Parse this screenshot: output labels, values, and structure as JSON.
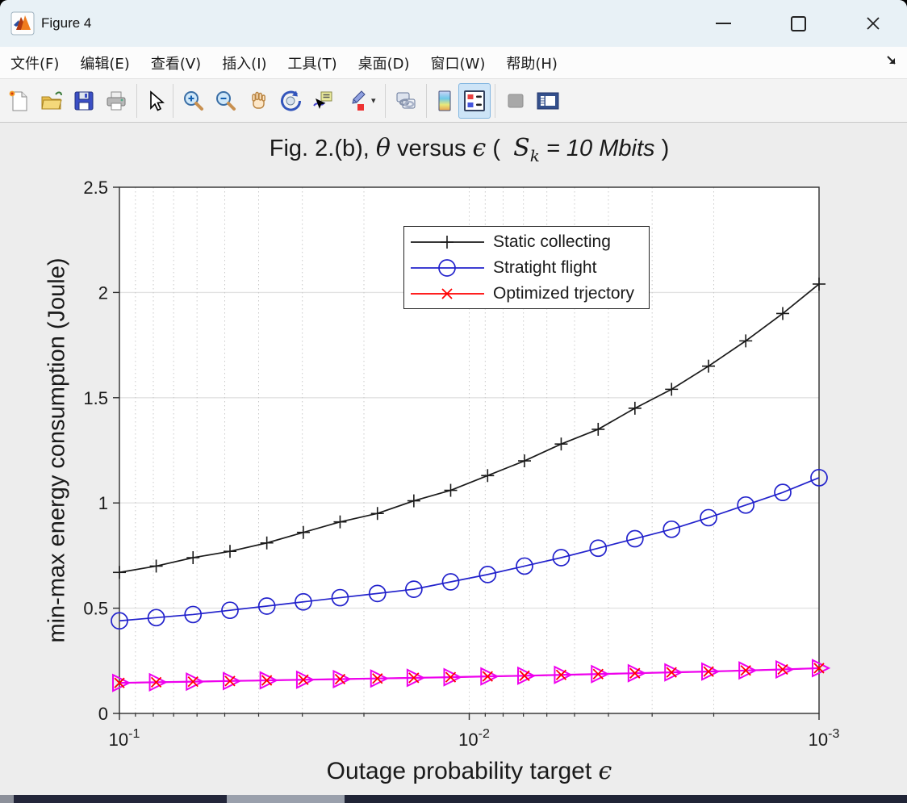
{
  "window": {
    "title": "Figure 4"
  },
  "menu": {
    "items": [
      "文件(F)",
      "编辑(E)",
      "查看(V)",
      "插入(I)",
      "工具(T)",
      "桌面(D)",
      "窗口(W)",
      "帮助(H)"
    ]
  },
  "toolbar": {
    "buttons": [
      "new-figure",
      "open-file",
      "save-figure",
      "print-figure",
      "edit-plot",
      "zoom-in",
      "zoom-out",
      "pan",
      "rotate-3d",
      "data-cursor",
      "brush-data",
      "link-plot",
      "insert-colorbar",
      "insert-legend",
      "hide-plot-tools",
      "show-plot-tools"
    ],
    "active_button": "insert-legend"
  },
  "chart_data": {
    "type": "line",
    "title_parts": {
      "prefix": "Fig. 2.(b), ",
      "theta": "θ",
      "versus": " versus ",
      "epsilon": "ϵ",
      "open_paren": " (  ",
      "s_var": "S",
      "s_sub": "k",
      "equals": " = 10 Mbits",
      "close_paren": " )"
    },
    "xlabel_text": "Outage probability target ",
    "xlabel_symbol": "ϵ",
    "ylabel": "min-max energy consumption (Joule)",
    "x_scale": "log10-reversed",
    "x_range": [
      0.1,
      0.001
    ],
    "ylim": [
      0,
      2.5
    ],
    "y_ticks": [
      0,
      0.5,
      1,
      1.5,
      2,
      2.5
    ],
    "x_major_ticks": [
      {
        "base": "10",
        "exp": "-1",
        "value": 0.1
      },
      {
        "base": "10",
        "exp": "-2",
        "value": 0.01
      },
      {
        "base": "10",
        "exp": "-3",
        "value": 0.001
      }
    ],
    "grid": true,
    "legend_position": "upper-center",
    "x": [
      0.1,
      0.0785,
      0.0616,
      0.0483,
      0.0379,
      0.0298,
      0.0234,
      0.0183,
      0.0144,
      0.0113,
      0.00886,
      0.00695,
      0.00546,
      0.00428,
      0.00336,
      0.00264,
      0.00207,
      0.00162,
      0.00127,
      0.001
    ],
    "series": [
      {
        "name": "Static collecting",
        "color": "#1a1a1a",
        "marker": "plus",
        "in_legend": true,
        "values": [
          0.67,
          0.7,
          0.74,
          0.77,
          0.81,
          0.86,
          0.91,
          0.95,
          1.01,
          1.06,
          1.13,
          1.2,
          1.28,
          1.35,
          1.45,
          1.54,
          1.65,
          1.77,
          1.9,
          2.04
        ]
      },
      {
        "name": "Stratight flight",
        "color": "#2222cc",
        "marker": "circle",
        "in_legend": true,
        "values": [
          0.44,
          0.455,
          0.47,
          0.49,
          0.51,
          0.53,
          0.55,
          0.57,
          0.59,
          0.625,
          0.66,
          0.7,
          0.74,
          0.785,
          0.83,
          0.875,
          0.93,
          0.99,
          1.05,
          1.12
        ]
      },
      {
        "name": "Optimized trjectory",
        "color": "#ff0000",
        "marker": "x",
        "in_legend": true,
        "values": [
          0.145,
          0.148,
          0.151,
          0.154,
          0.157,
          0.16,
          0.163,
          0.166,
          0.169,
          0.172,
          0.176,
          0.179,
          0.183,
          0.187,
          0.191,
          0.195,
          0.199,
          0.204,
          0.209,
          0.215
        ]
      },
      {
        "name": "",
        "color": "#ee00ee",
        "marker": "triangle-right",
        "in_legend": false,
        "values": [
          0.145,
          0.148,
          0.151,
          0.154,
          0.157,
          0.16,
          0.163,
          0.166,
          0.169,
          0.172,
          0.176,
          0.179,
          0.183,
          0.187,
          0.191,
          0.195,
          0.199,
          0.204,
          0.209,
          0.215
        ]
      }
    ]
  }
}
